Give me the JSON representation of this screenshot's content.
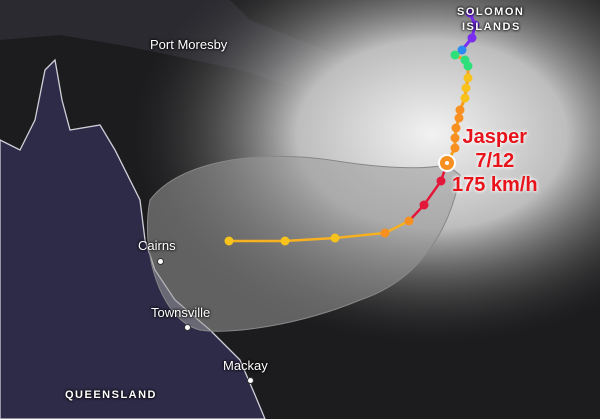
{
  "places": {
    "port_moresby": "Port Moresby",
    "solomon_islands_1": "SOLOMON",
    "solomon_islands_2": "ISLANDS",
    "cairns": "Cairns",
    "townsville": "Townsville",
    "mackay": "Mackay",
    "queensland": "QUEENSLAND"
  },
  "storm": {
    "name": "Jasper",
    "date": "7/12",
    "wind": "175 km/h"
  },
  "colors": {
    "label_red": "#e8141c",
    "cat_purple": "#7b2cf0",
    "cat_blue": "#2a8cf0",
    "cat_green": "#2ee07a",
    "cat_yellow": "#f7c21b",
    "cat_orange": "#f79020",
    "cat_red": "#e3173a",
    "cone": "#9a9a9a"
  }
}
